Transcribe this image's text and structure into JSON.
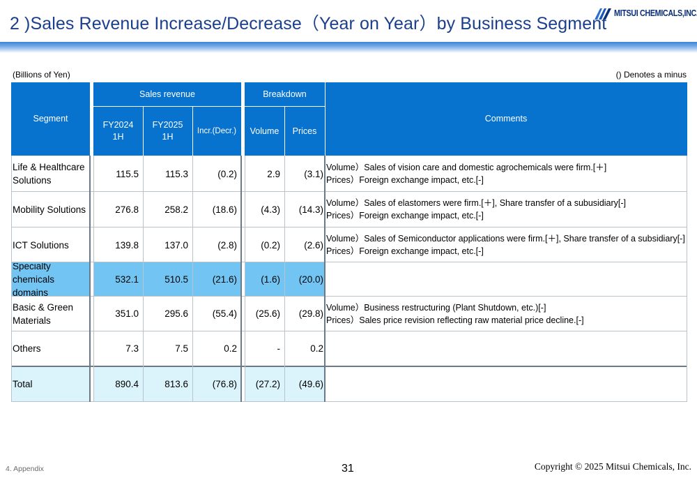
{
  "slide": {
    "title": "2 )Sales Revenue Increase/Decrease（Year on Year）by Business Segment",
    "logo_text": "MITSUI CHEMICALS,INC.",
    "unit_note": "(Billions of Yen)",
    "minus_note": "() Denotes a minus"
  },
  "table": {
    "headers": {
      "segment": "Segment",
      "sales_revenue": "Sales revenue",
      "fy2024": "FY2024",
      "fy2024_period": "1H",
      "fy2025": "FY2025",
      "fy2025_period": "1H",
      "incr": "Incr.(Decr.)",
      "breakdown": "Breakdown",
      "volume": "Volume",
      "prices": "Prices",
      "comments": "Comments"
    },
    "rows": [
      {
        "segment_line1": "Life & Healthcare",
        "segment_line2": "Solutions",
        "fy2024": "115.5",
        "fy2025": "115.3",
        "incr": "(0.2)",
        "volume": "2.9",
        "prices": "(3.1)",
        "comment_line1": "Volume）Sales of vision care and domestic agrochemicals were firm.[＋]",
        "comment_line2": "Prices）Foreign exchange impact, etc.[-]"
      },
      {
        "segment_line1": "Mobility Solutions",
        "segment_line2": "",
        "fy2024": "276.8",
        "fy2025": "258.2",
        "incr": "(18.6)",
        "volume": "(4.3)",
        "prices": "(14.3)",
        "comment_line1": "Volume）Sales of elastomers were firm.[＋], Share transfer of a subusidiary[-]",
        "comment_line2": "Prices）Foreign exchange impact, etc.[-]"
      },
      {
        "segment_line1": "ICT Solutions",
        "segment_line2": "",
        "fy2024": "139.8",
        "fy2025": "137.0",
        "incr": "(2.8)",
        "volume": "(0.2)",
        "prices": "(2.6)",
        "comment_line1": "Volume）Sales of Semiconductor applications were firm.[＋], Share transfer of a subsidiary[-]",
        "comment_line2": "Prices）Foreign exchange impact, etc.[-]"
      },
      {
        "segment_line1": "Specialty",
        "segment_line2": "chemicals domains",
        "fy2024": "532.1",
        "fy2025": "510.5",
        "incr": "(21.6)",
        "volume": "(1.6)",
        "prices": "(20.0)",
        "comment_line1": "",
        "comment_line2": ""
      },
      {
        "segment_line1": "Basic & Green",
        "segment_line2": "Materials",
        "fy2024": "351.0",
        "fy2025": "295.6",
        "incr": "(55.4)",
        "volume": "(25.6)",
        "prices": "(29.8)",
        "comment_line1": "Volume）Business restructuring (Plant Shutdown, etc.)[-]",
        "comment_line2": "Prices）Sales price revision reflecting raw material price decline.[-]"
      },
      {
        "segment_line1": "Others",
        "segment_line2": "",
        "fy2024": "7.3",
        "fy2025": "7.5",
        "incr": "0.2",
        "volume": "-",
        "prices": "0.2",
        "comment_line1": "",
        "comment_line2": ""
      },
      {
        "segment_line1": "Total",
        "segment_line2": "",
        "fy2024": "890.4",
        "fy2025": "813.6",
        "incr": "(76.8)",
        "volume": "(27.2)",
        "prices": "(49.6)",
        "comment_line1": "",
        "comment_line2": ""
      }
    ]
  },
  "footer": {
    "section": "4. Appendix",
    "page": "31",
    "copyright": "Copyright © 2025 Mitsui Chemicals, Inc."
  },
  "colors": {
    "header_blue": "#0873cf",
    "highlight_row": "#72c5f3",
    "total_row": "#dbf4fb",
    "title_color": "#1a3f8c"
  }
}
